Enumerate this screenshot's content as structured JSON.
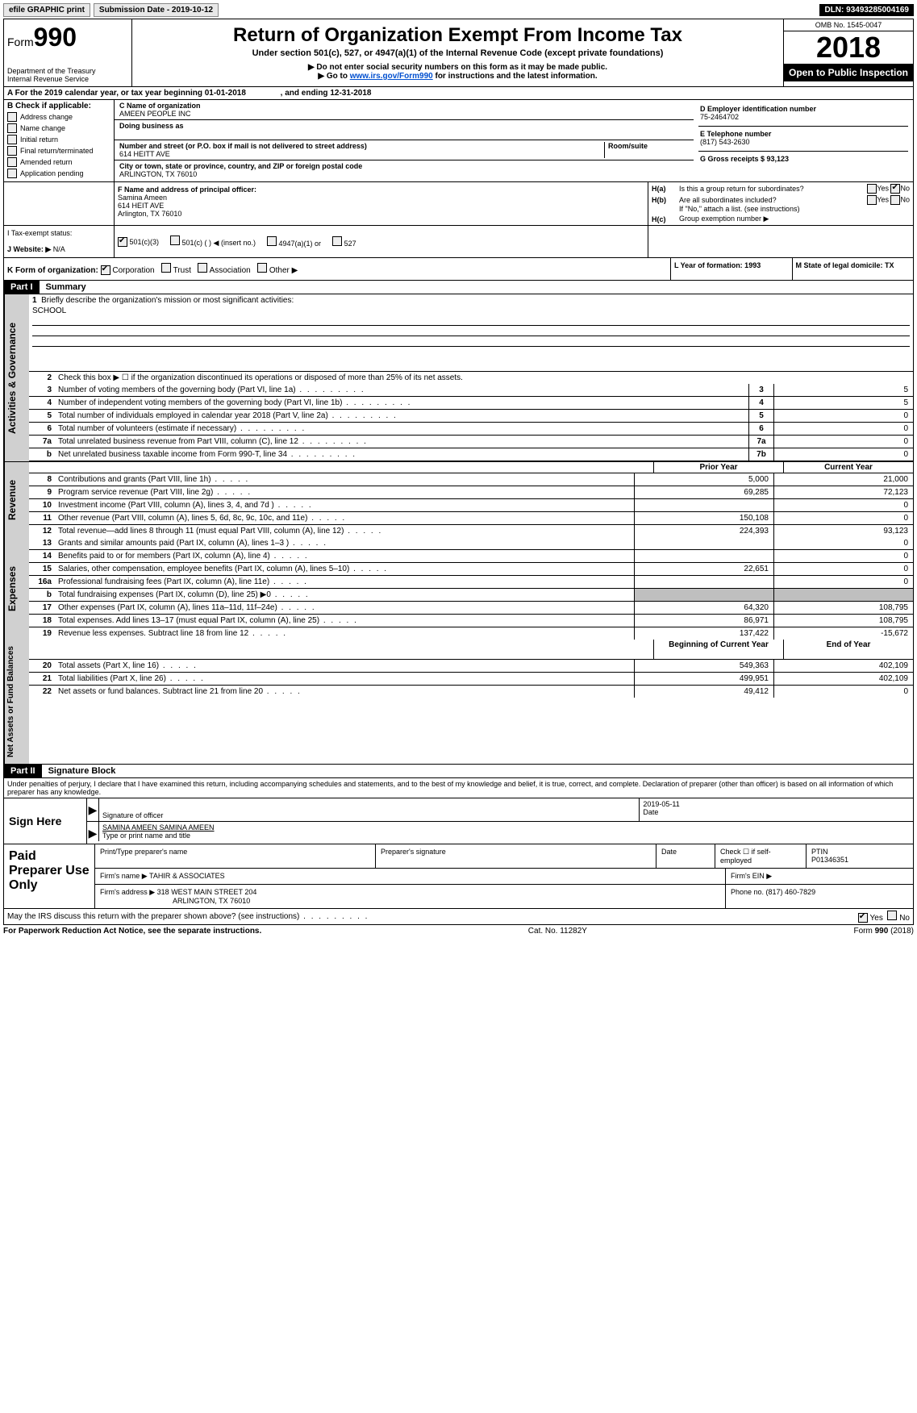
{
  "topbar": {
    "efile": "efile GRAPHIC print",
    "sub_label": "Submission Date - 2019-10-12",
    "dln": "DLN: 93493285004169"
  },
  "header": {
    "form_word": "Form",
    "form_num": "990",
    "dept1": "Department of the Treasury",
    "dept2": "Internal Revenue Service",
    "title": "Return of Organization Exempt From Income Tax",
    "subtitle": "Under section 501(c), 527, or 4947(a)(1) of the Internal Revenue Code (except private foundations)",
    "note1": "▶ Do not enter social security numbers on this form as it may be made public.",
    "note2_pre": "▶ Go to ",
    "note2_link": "www.irs.gov/Form990",
    "note2_post": " for instructions and the latest information.",
    "omb": "OMB No. 1545-0047",
    "year": "2018",
    "open": "Open to Public Inspection"
  },
  "period": {
    "a_label": "A   For the 2019 calendar year, or tax year beginning 01-01-2018",
    "ending": ", and ending 12-31-2018"
  },
  "col_b": {
    "label": "B Check if applicable:",
    "addr_change": "Address change",
    "name_change": "Name change",
    "initial": "Initial return",
    "final": "Final return/terminated",
    "amended": "Amended return",
    "pending": "Application pending"
  },
  "col_c": {
    "c_label": "C Name of organization",
    "name": "AMEEN PEOPLE INC",
    "dba_label": "Doing business as",
    "addr_label": "Number and street (or P.O. box if mail is not delivered to street address)",
    "room_label": "Room/suite",
    "addr": "614 HEITT AVE",
    "city_label": "City or town, state or province, country, and ZIP or foreign postal code",
    "city": "ARLINGTON, TX  76010",
    "f_label": "F Name and address of principal officer:",
    "officer_name": "Samina Ameen",
    "officer_addr1": "614 HEIT AVE",
    "officer_addr2": "Arlington, TX  76010"
  },
  "col_d": {
    "d_label": "D Employer identification number",
    "ein": "75-2464702",
    "e_label": "E Telephone number",
    "phone": "(817) 543-2630",
    "g_label": "G Gross receipts $ 93,123"
  },
  "col_h": {
    "ha": "H(a)",
    "ha_txt": "Is this a group return for subordinates?",
    "hb": "H(b)",
    "hb_txt": "Are all subordinates included?",
    "hb_note": "If \"No,\" attach a list. (see instructions)",
    "hc": "H(c)",
    "hc_txt": "Group exemption number ▶",
    "yes": "Yes",
    "no": "No"
  },
  "status": {
    "i_label": "I    Tax-exempt status:",
    "c3": "501(c)(3)",
    "c": "501(c) (   ) ◀ (insert no.)",
    "a4947": "4947(a)(1) or",
    "s527": "527",
    "j_label": "J    Website: ▶",
    "website": "N/A"
  },
  "k_row": {
    "k_label": "K Form of organization:",
    "corp": "Corporation",
    "trust": "Trust",
    "assoc": "Association",
    "other": "Other ▶",
    "l_label": "L Year of formation: 1993",
    "m_label": "M State of legal domicile: TX"
  },
  "part1": {
    "hdr": "Part I",
    "title": "Summary",
    "l1": "Briefly describe the organization's mission or most significant activities:",
    "mission": "SCHOOL",
    "l2": "Check this box ▶ ☐  if the organization discontinued its operations or disposed of more than 25% of its net assets.",
    "lines_gov": [
      {
        "n": "3",
        "t": "Number of voting members of the governing body (Part VI, line 1a)",
        "box": "3",
        "v": "5"
      },
      {
        "n": "4",
        "t": "Number of independent voting members of the governing body (Part VI, line 1b)",
        "box": "4",
        "v": "5"
      },
      {
        "n": "5",
        "t": "Total number of individuals employed in calendar year 2018 (Part V, line 2a)",
        "box": "5",
        "v": "0"
      },
      {
        "n": "6",
        "t": "Total number of volunteers (estimate if necessary)",
        "box": "6",
        "v": "0"
      },
      {
        "n": "7a",
        "t": "Total unrelated business revenue from Part VIII, column (C), line 12",
        "box": "7a",
        "v": "0"
      },
      {
        "n": "b",
        "t": "Net unrelated business taxable income from Form 990-T, line 34",
        "box": "7b",
        "v": "0"
      }
    ],
    "col_prior": "Prior Year",
    "col_curr": "Current Year",
    "revenue": [
      {
        "n": "8",
        "t": "Contributions and grants (Part VIII, line 1h)",
        "p": "5,000",
        "c": "21,000"
      },
      {
        "n": "9",
        "t": "Program service revenue (Part VIII, line 2g)",
        "p": "69,285",
        "c": "72,123"
      },
      {
        "n": "10",
        "t": "Investment income (Part VIII, column (A), lines 3, 4, and 7d )",
        "p": "",
        "c": "0"
      },
      {
        "n": "11",
        "t": "Other revenue (Part VIII, column (A), lines 5, 6d, 8c, 9c, 10c, and 11e)",
        "p": "150,108",
        "c": "0"
      },
      {
        "n": "12",
        "t": "Total revenue—add lines 8 through 11 (must equal Part VIII, column (A), line 12)",
        "p": "224,393",
        "c": "93,123"
      }
    ],
    "expenses": [
      {
        "n": "13",
        "t": "Grants and similar amounts paid (Part IX, column (A), lines 1–3 )",
        "p": "",
        "c": "0"
      },
      {
        "n": "14",
        "t": "Benefits paid to or for members (Part IX, column (A), line 4)",
        "p": "",
        "c": "0"
      },
      {
        "n": "15",
        "t": "Salaries, other compensation, employee benefits (Part IX, column (A), lines 5–10)",
        "p": "22,651",
        "c": "0"
      },
      {
        "n": "16a",
        "t": "Professional fundraising fees (Part IX, column (A), line 11e)",
        "p": "",
        "c": "0"
      },
      {
        "n": "b",
        "t": "Total fundraising expenses (Part IX, column (D), line 25) ▶0",
        "p": "",
        "c": "",
        "shade": true
      },
      {
        "n": "17",
        "t": "Other expenses (Part IX, column (A), lines 11a–11d, 11f–24e)",
        "p": "64,320",
        "c": "108,795"
      },
      {
        "n": "18",
        "t": "Total expenses. Add lines 13–17 (must equal Part IX, column (A), line 25)",
        "p": "86,971",
        "c": "108,795"
      },
      {
        "n": "19",
        "t": "Revenue less expenses. Subtract line 18 from line 12",
        "p": "137,422",
        "c": "-15,672"
      }
    ],
    "col_begin": "Beginning of Current Year",
    "col_end": "End of Year",
    "net": [
      {
        "n": "20",
        "t": "Total assets (Part X, line 16)",
        "p": "549,363",
        "c": "402,109"
      },
      {
        "n": "21",
        "t": "Total liabilities (Part X, line 26)",
        "p": "499,951",
        "c": "402,109"
      },
      {
        "n": "22",
        "t": "Net assets or fund balances. Subtract line 21 from line 20",
        "p": "49,412",
        "c": "0"
      }
    ],
    "vtab_gov": "Activities & Governance",
    "vtab_rev": "Revenue",
    "vtab_exp": "Expenses",
    "vtab_net": "Net Assets or Fund Balances"
  },
  "part2": {
    "hdr": "Part II",
    "title": "Signature Block",
    "perjury": "Under penalties of perjury, I declare that I have examined this return, including accompanying schedules and statements, and to the best of my knowledge and belief, it is true, correct, and complete. Declaration of preparer (other than officer) is based on all information of which preparer has any knowledge.",
    "sign_here": "Sign Here",
    "sig_of_officer": "Signature of officer",
    "sig_date": "2019-05-11",
    "date_label": "Date",
    "typed_name": "SAMINA AMEEN  SAMINA AMEEN",
    "type_label": "Type or print name and title"
  },
  "paid": {
    "label": "Paid Preparer Use Only",
    "print_label": "Print/Type preparer's name",
    "sig_label": "Preparer's signature",
    "date_label": "Date",
    "check_label": "Check ☐ if self-employed",
    "ptin_label": "PTIN",
    "ptin": "P01346351",
    "firm_name_label": "Firm's name    ▶",
    "firm_name": "TAHIR & ASSOCIATES",
    "firm_ein_label": "Firm's EIN ▶",
    "firm_addr_label": "Firm's address ▶",
    "firm_addr1": "318 WEST MAIN STREET 204",
    "firm_addr2": "ARLINGTON, TX  76010",
    "phone_label": "Phone no. (817) 460-7829"
  },
  "footer": {
    "discuss": "May the IRS discuss this return with the preparer shown above? (see instructions)",
    "paperwork": "For Paperwork Reduction Act Notice, see the separate instructions.",
    "cat": "Cat. No. 11282Y",
    "form": "Form 990 (2018)",
    "yes": "Yes",
    "no": "No"
  }
}
